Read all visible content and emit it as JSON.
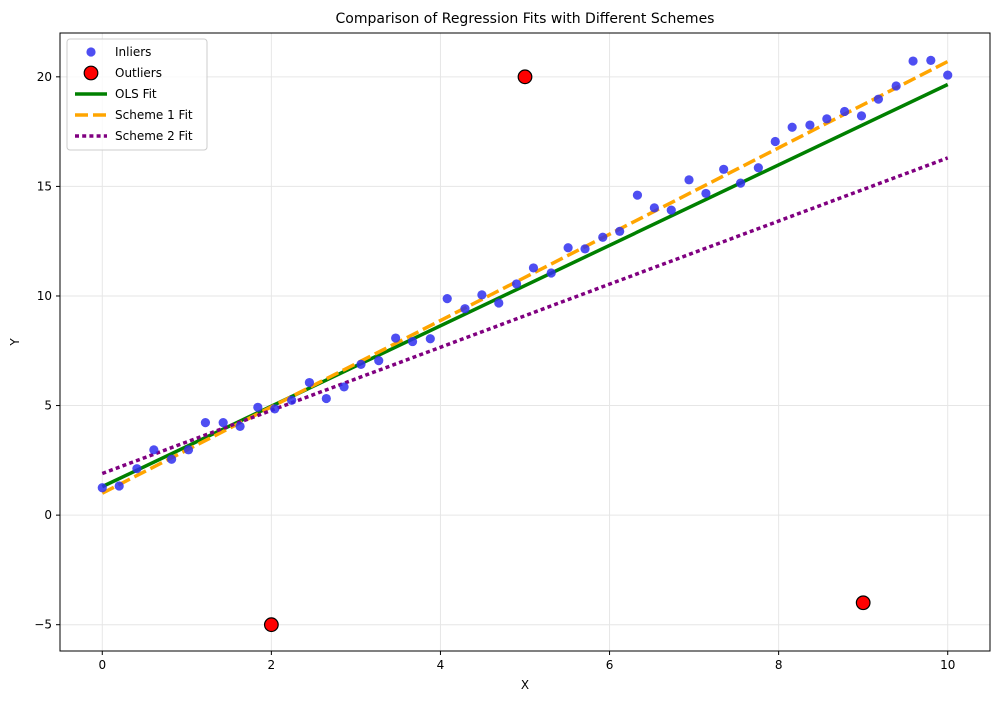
{
  "chart_data": {
    "type": "scatter",
    "title": "Comparison of Regression Fits with Different Schemes",
    "xlabel": "X",
    "ylabel": "Y",
    "xlim": [
      -0.5,
      10.5
    ],
    "ylim": [
      -6.2,
      22.0
    ],
    "x_ticks": [
      0,
      2,
      4,
      6,
      8,
      10
    ],
    "x_tick_labels": [
      "0",
      "2",
      "4",
      "6",
      "8",
      "10"
    ],
    "y_ticks": [
      -5,
      0,
      5,
      10,
      15,
      20
    ],
    "y_tick_labels": [
      "−5",
      "0",
      "5",
      "10",
      "15",
      "20"
    ],
    "grid": true,
    "legend_position": "top-left",
    "legend": [
      {
        "label": "Inliers",
        "kind": "point",
        "color": "#2f2ff0"
      },
      {
        "label": "Outliers",
        "kind": "outlier",
        "color": "#ff0000"
      },
      {
        "label": "OLS Fit",
        "kind": "solid",
        "color": "#008000"
      },
      {
        "label": "Scheme 1 Fit",
        "kind": "dashed",
        "color": "#ffa500"
      },
      {
        "label": "Scheme 2 Fit",
        "kind": "dotted",
        "color": "#800080"
      }
    ],
    "series": [
      {
        "name": "Inliers",
        "kind": "scatter",
        "color": "#2f2ff0",
        "points": [
          [
            0.0,
            1.25
          ],
          [
            0.2,
            1.33
          ],
          [
            0.41,
            2.12
          ],
          [
            0.61,
            2.98
          ],
          [
            0.82,
            2.55
          ],
          [
            1.02,
            2.98
          ],
          [
            1.22,
            4.22
          ],
          [
            1.43,
            4.22
          ],
          [
            1.63,
            4.05
          ],
          [
            1.84,
            4.92
          ],
          [
            2.04,
            4.85
          ],
          [
            2.24,
            5.24
          ],
          [
            2.45,
            6.05
          ],
          [
            2.65,
            5.32
          ],
          [
            2.86,
            5.85
          ],
          [
            3.06,
            6.88
          ],
          [
            3.27,
            7.05
          ],
          [
            3.47,
            8.08
          ],
          [
            3.67,
            7.92
          ],
          [
            3.88,
            8.05
          ],
          [
            4.08,
            9.88
          ],
          [
            4.29,
            9.42
          ],
          [
            4.49,
            10.05
          ],
          [
            4.69,
            9.68
          ],
          [
            4.9,
            10.55
          ],
          [
            5.1,
            11.28
          ],
          [
            5.31,
            11.05
          ],
          [
            5.51,
            12.2
          ],
          [
            5.71,
            12.15
          ],
          [
            5.92,
            12.68
          ],
          [
            6.12,
            12.95
          ],
          [
            6.33,
            14.6
          ],
          [
            6.53,
            14.02
          ],
          [
            6.73,
            13.92
          ],
          [
            6.94,
            15.3
          ],
          [
            7.14,
            14.68
          ],
          [
            7.35,
            15.78
          ],
          [
            7.55,
            15.15
          ],
          [
            7.76,
            15.85
          ],
          [
            7.96,
            17.05
          ],
          [
            8.16,
            17.7
          ],
          [
            8.37,
            17.8
          ],
          [
            8.57,
            18.08
          ],
          [
            8.78,
            18.42
          ],
          [
            8.98,
            18.22
          ],
          [
            9.18,
            18.98
          ],
          [
            9.39,
            19.58
          ],
          [
            9.59,
            20.72
          ],
          [
            9.8,
            20.75
          ],
          [
            10.0,
            20.08
          ]
        ]
      },
      {
        "name": "Outliers",
        "kind": "scatter-outlier",
        "color": "#ff0000",
        "points": [
          [
            2.0,
            -5.0
          ],
          [
            5.0,
            20.0
          ],
          [
            9.0,
            -4.0
          ]
        ]
      },
      {
        "name": "OLS Fit",
        "kind": "line",
        "style": "solid",
        "color": "#008000",
        "points": [
          [
            0.0,
            1.3
          ],
          [
            10.0,
            19.65
          ]
        ]
      },
      {
        "name": "Scheme 1 Fit",
        "kind": "line",
        "style": "dashed",
        "color": "#ffa500",
        "points": [
          [
            0.0,
            1.0
          ],
          [
            10.0,
            20.7
          ]
        ]
      },
      {
        "name": "Scheme 2 Fit",
        "kind": "line",
        "style": "dotted",
        "color": "#800080",
        "points": [
          [
            0.0,
            1.9
          ],
          [
            10.0,
            16.3
          ]
        ]
      }
    ]
  }
}
